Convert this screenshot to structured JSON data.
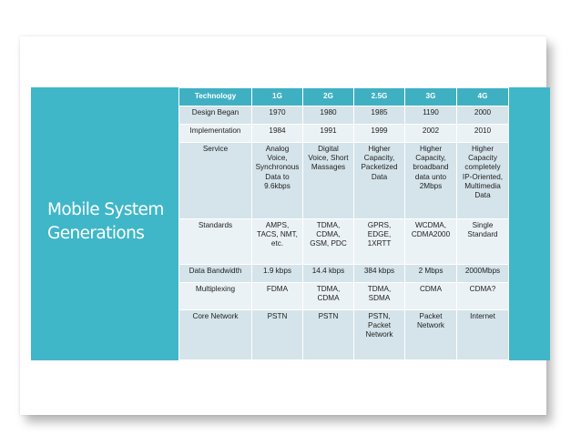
{
  "slide": {
    "title": "Mobile System\nGenerations"
  },
  "table": {
    "headers": [
      "Technology",
      "1G",
      "2G",
      "2.5G",
      "3G",
      "4G"
    ],
    "rows": [
      {
        "label": "Design Began",
        "cells": [
          "1970",
          "1980",
          "1985",
          "1190",
          "2000"
        ]
      },
      {
        "label": "Implementation",
        "cells": [
          "1984",
          "1991",
          "1999",
          "2002",
          "2010"
        ]
      },
      {
        "label": "Service",
        "cells": [
          "Analog\nVoice,\nSynchronous\nData to\n9.6kbps",
          "Digital\nVoice, Short\nMassages",
          "Higher\nCapacity,\nPacketized\nData",
          "Higher\nCapacity,\nbroadband\ndata unto\n2Mbps",
          "Higher\nCapacity\ncompletely\nIP-Oriented,\nMultimedia\nData"
        ]
      },
      {
        "label": "Standards",
        "cells": [
          "AMPS,\nTACS, NMT,\netc.",
          "TDMA,\nCDMA,\nGSM, PDC",
          "GPRS,\nEDGE,\n1XRTT",
          "WCDMA,\nCDMA2000",
          "Single\nStandard"
        ]
      },
      {
        "label": "Data Bandwidth",
        "cells": [
          "1.9 kbps",
          "14.4 kbps",
          "384 kbps",
          "2 Mbps",
          "2000Mbps"
        ]
      },
      {
        "label": "Multiplexing",
        "cells": [
          "FDMA",
          "TDMA,\nCDMA",
          "TDMA,\nSDMA",
          "CDMA",
          "CDMA?"
        ]
      },
      {
        "label": "Core Network",
        "cells": [
          "PSTN",
          "PSTN",
          "PSTN,\nPacket\nNetwork",
          "Packet\nNetwork",
          "Internet"
        ]
      }
    ]
  },
  "colors": {
    "accent": "#3fb7c8",
    "header_bg": "#3fb0c2",
    "row_odd": "#d5e4ea",
    "row_even": "#ebf2f5"
  }
}
